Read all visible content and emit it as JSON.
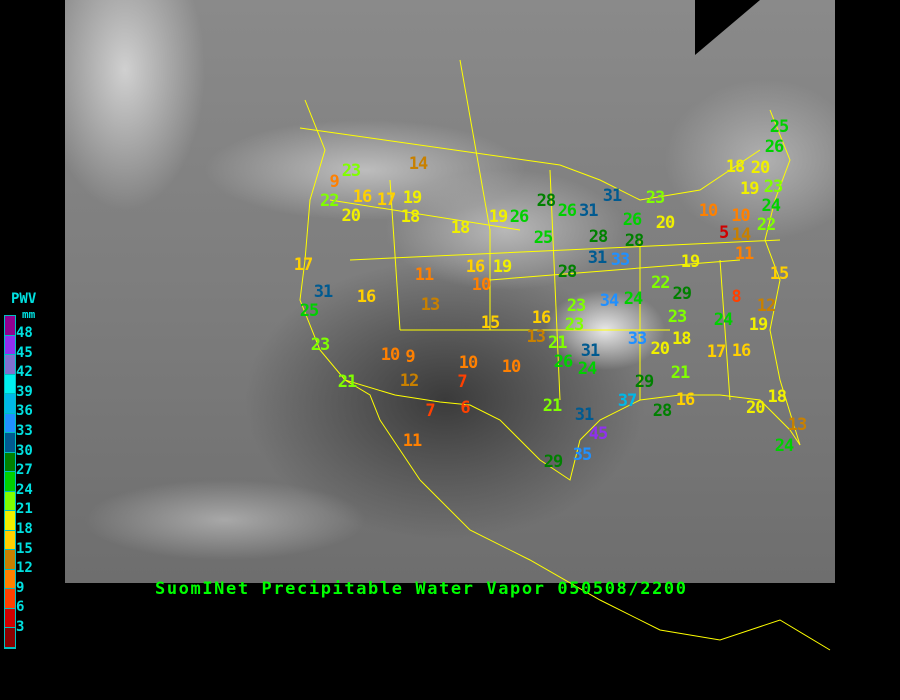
{
  "title": "SuomINet Precipitable Water Vapor 050508/2200",
  "legend": {
    "title": "PWV",
    "unit": "mm",
    "ticks": [
      "48",
      "45",
      "42",
      "39",
      "36",
      "33",
      "30",
      "27",
      "24",
      "21",
      "18",
      "15",
      "12",
      "9",
      "6",
      "3"
    ],
    "colors": [
      "#900090",
      "#9030f0",
      "#8070d0",
      "#00f0f0",
      "#00b8e8",
      "#2090ff",
      "#005a90",
      "#008000",
      "#00d000",
      "#80ff00",
      "#f0f000",
      "#ffd000",
      "#c88000",
      "#ff8000",
      "#ff4000",
      "#d00000",
      "#8b0000"
    ]
  },
  "stations": [
    14,
    23,
    9,
    22,
    16,
    17,
    19,
    20,
    18,
    18,
    19,
    26,
    28,
    25,
    17,
    16,
    19,
    11,
    10,
    31,
    16,
    25,
    13,
    15,
    16,
    13,
    23,
    10,
    9,
    12,
    10,
    7,
    10,
    21,
    7,
    6,
    11,
    26,
    31,
    31,
    23,
    26,
    28,
    28,
    20,
    10,
    10,
    5,
    14,
    11,
    31,
    33,
    28,
    19,
    15,
    22,
    29,
    8,
    12,
    23,
    34,
    24,
    23,
    24,
    19,
    23,
    21,
    26,
    31,
    24,
    33,
    20,
    18,
    17,
    16,
    29,
    21,
    37,
    28,
    16,
    21,
    31,
    45,
    35,
    29,
    20,
    18,
    13,
    24,
    25,
    26,
    18,
    20,
    19,
    23,
    24,
    22
  ],
  "colors": {
    "title": "#00ff00",
    "legend_text": "#00e0e0",
    "boundaries": "#ffff00"
  }
}
